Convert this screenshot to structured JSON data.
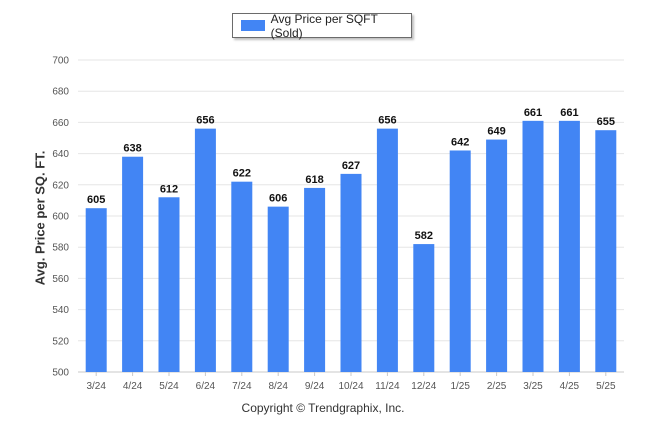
{
  "legend": {
    "label": "Avg Price per SQFT (Sold)"
  },
  "footer": {
    "copyright": "Copyright © Trendgraphix, Inc."
  },
  "colors": {
    "bar": "#4285f4",
    "grid": "#e6e6e6",
    "axis": "#c8c8c8"
  },
  "chart_data": {
    "type": "bar",
    "ylabel": "Avg. Price per SQ. FT.",
    "ylim": [
      500,
      700
    ],
    "yticks": [
      500,
      520,
      540,
      560,
      580,
      600,
      620,
      640,
      660,
      680,
      700
    ],
    "grid": true,
    "legend_position": "top-center",
    "categories": [
      "3/24",
      "4/24",
      "5/24",
      "6/24",
      "7/24",
      "8/24",
      "9/24",
      "10/24",
      "11/24",
      "12/24",
      "1/25",
      "2/25",
      "3/25",
      "4/25",
      "5/25"
    ],
    "series": [
      {
        "name": "Avg Price per SQFT (Sold)",
        "values": [
          605,
          638,
          612,
          656,
          622,
          606,
          618,
          627,
          656,
          582,
          642,
          649,
          661,
          661,
          655
        ]
      }
    ]
  }
}
